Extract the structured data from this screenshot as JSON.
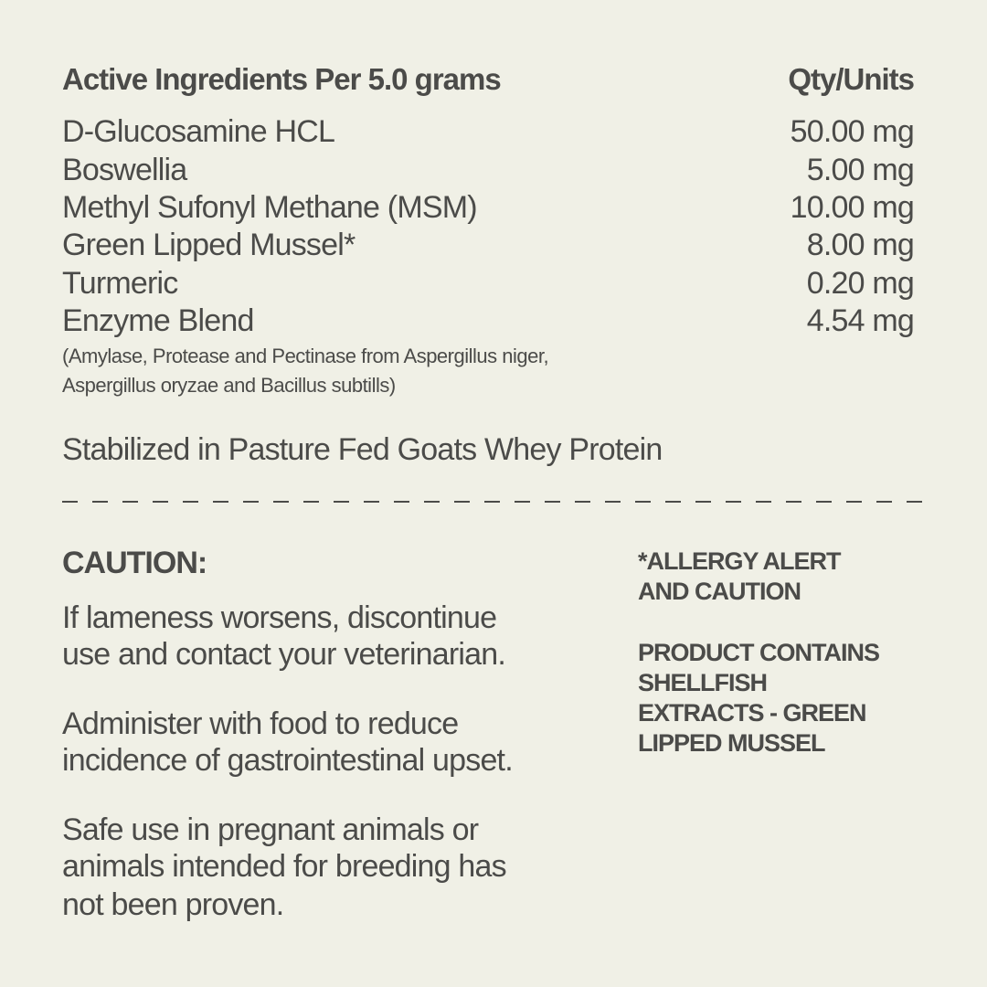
{
  "colors": {
    "background": "#f0f0e6",
    "text": "#4b4b49"
  },
  "ingredients": {
    "header_label": "Active Ingredients Per 5.0 grams",
    "header_qty": "Qty/Units",
    "rows": [
      {
        "name": "D-Glucosamine HCL",
        "qty": "50.00 mg"
      },
      {
        "name": "Boswellia",
        "qty": "5.00 mg"
      },
      {
        "name": "Methyl Sufonyl Methane (MSM)",
        "qty": "10.00 mg"
      },
      {
        "name": "Green Lipped Mussel*",
        "qty": "8.00 mg"
      },
      {
        "name": "Turmeric",
        "qty": "0.20 mg"
      },
      {
        "name": "Enzyme Blend",
        "qty": "4.54 mg"
      }
    ],
    "enzyme_note": [
      "(Amylase, Protease and Pectinase from Aspergillus niger,",
      "Aspergillus oryzae and Bacillus subtills)"
    ],
    "base": "Stabilized in Pasture Fed Goats Whey Protein"
  },
  "caution": {
    "title": "CAUTION:",
    "paragraphs": [
      [
        "If lameness worsens, discontinue",
        "use and contact your veterinarian."
      ],
      [
        "Administer with food to reduce",
        "incidence of gastrointestinal upset."
      ],
      [
        "Safe use in pregnant animals or",
        "animals intended for breeding has",
        "not been proven."
      ]
    ]
  },
  "allergy": {
    "title": [
      "*ALLERGY ALERT",
      "AND CAUTION"
    ],
    "body": [
      "PRODUCT CONTAINS",
      "SHELLFISH",
      "EXTRACTS - GREEN",
      "LIPPED MUSSEL"
    ]
  }
}
